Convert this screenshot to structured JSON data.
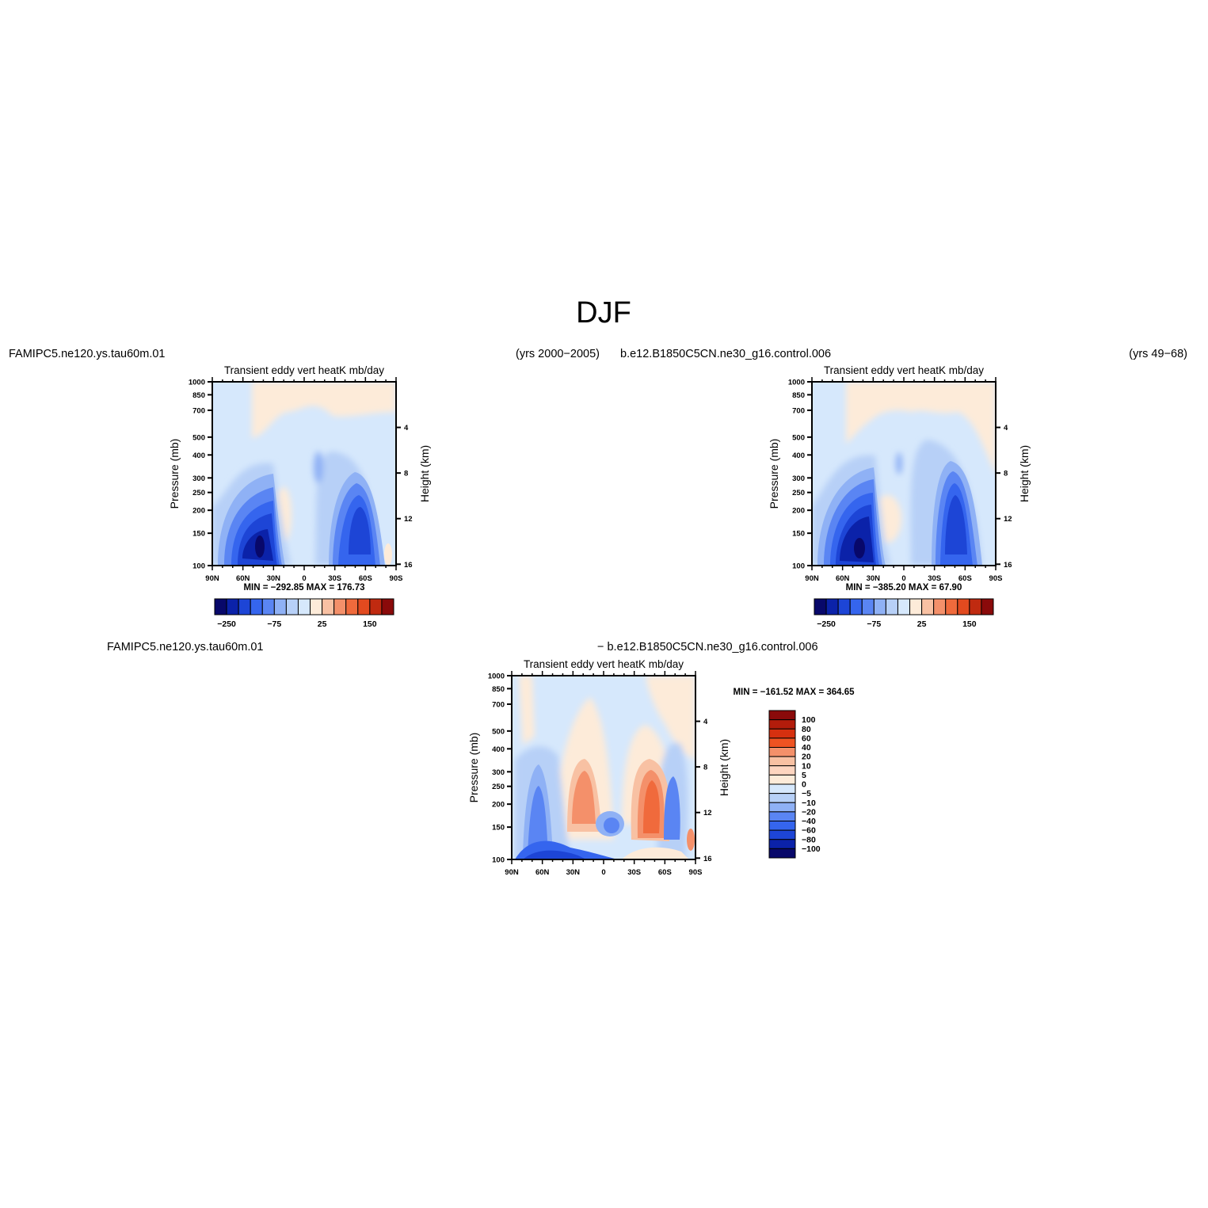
{
  "figure": {
    "title": "DJF",
    "colors": {
      "deep_blue": "#08086a",
      "blue": "#1f4ff0",
      "light_blue": "#d6e8fc",
      "cream": "#fdebd9",
      "orange": "#f06a3c",
      "dark_red": "#8a0a0a"
    }
  },
  "chart_data": [
    {
      "type": "heatmap",
      "case_label": "FAMIPC5.ne120.ys.tau60m.01",
      "years_label": "(yrs 2000−2005)",
      "title": "Transient  eddy  vert  heatK  mb/day",
      "ylabel": "Pressure  (mb)",
      "y2label": "Height  (km)",
      "x_ticks": [
        "90N",
        "60N",
        "30N",
        "0",
        "30S",
        "60S",
        "90S"
      ],
      "y_ticks": [
        "100",
        "150",
        "200",
        "250",
        "300",
        "400",
        "500",
        "700",
        "850",
        "1000"
      ],
      "y2_ticks": [
        "16",
        "12",
        "8",
        "4"
      ],
      "x_range": [
        90,
        -90
      ],
      "y_range_mb": [
        1000,
        100
      ],
      "y_scale": "log",
      "min_max_label": "MIN = −292.85   MAX = 176.73",
      "stats": {
        "min": -292.85,
        "max": 176.73
      },
      "colorbar": {
        "orientation": "horizontal",
        "labels": [
          "−250",
          "−75",
          "25",
          "150"
        ]
      }
    },
    {
      "type": "heatmap",
      "case_label": "b.e12.B1850C5CN.ne30_g16.control.006",
      "years_label": "(yrs 49−68)",
      "title": "Transient  eddy  vert  heatK  mb/day",
      "ylabel": "Pressure  (mb)",
      "y2label": "Height  (km)",
      "x_ticks": [
        "90N",
        "60N",
        "30N",
        "0",
        "30S",
        "60S",
        "90S"
      ],
      "y_ticks": [
        "100",
        "150",
        "200",
        "250",
        "300",
        "400",
        "500",
        "700",
        "850",
        "1000"
      ],
      "y2_ticks": [
        "16",
        "12",
        "8",
        "4"
      ],
      "x_range": [
        90,
        -90
      ],
      "y_range_mb": [
        1000,
        100
      ],
      "y_scale": "log",
      "min_max_label": "MIN = −385.20   MAX =   67.90",
      "stats": {
        "min": -385.2,
        "max": 67.9
      },
      "colorbar": {
        "orientation": "horizontal",
        "labels": [
          "−250",
          "−75",
          "25",
          "150"
        ]
      }
    },
    {
      "type": "heatmap",
      "case_label": "FAMIPC5.ne120.ys.tau60m.01",
      "diff_label": "−  b.e12.B1850C5CN.ne30_g16.control.006",
      "title": "Transient  eddy  vert  heatK  mb/day",
      "ylabel": "Pressure  (mb)",
      "y2label": "Height  (km)",
      "x_ticks": [
        "90N",
        "60N",
        "30N",
        "0",
        "30S",
        "60S",
        "90S"
      ],
      "y_ticks": [
        "100",
        "150",
        "200",
        "250",
        "300",
        "400",
        "500",
        "700",
        "850",
        "1000"
      ],
      "y2_ticks": [
        "16",
        "12",
        "8",
        "4"
      ],
      "x_range": [
        90,
        -90
      ],
      "y_range_mb": [
        1000,
        100
      ],
      "y_scale": "log",
      "min_max_label": "MIN = −161.52   MAX = 364.65",
      "stats": {
        "min": -161.52,
        "max": 364.65
      },
      "colorbar": {
        "orientation": "vertical",
        "labels": [
          "100",
          "80",
          "60",
          "40",
          "20",
          "10",
          "5",
          "0",
          "−5",
          "−10",
          "−20",
          "−40",
          "−60",
          "−80",
          "−100"
        ]
      }
    }
  ]
}
